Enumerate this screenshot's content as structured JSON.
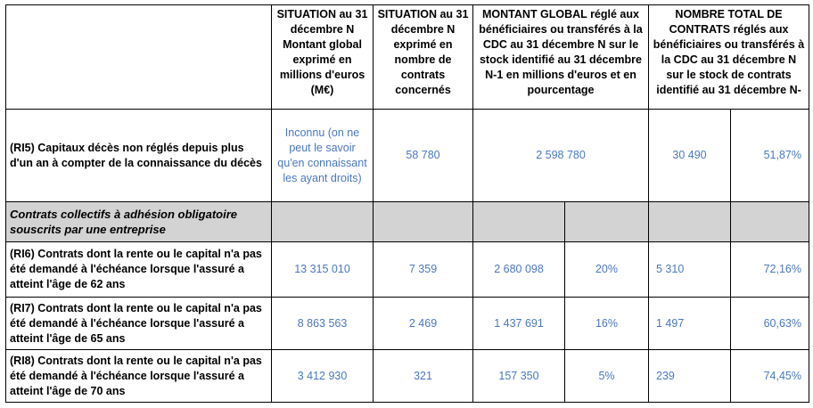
{
  "headers": {
    "col1": "SITUATION au 31 décembre N Montant global exprimé en millions d'euros (M€)",
    "col2": "SITUATION au 31 décembre N exprimé en nombre de contrats concernés",
    "col3": "MONTANT GLOBAL réglé aux bénéficiaires ou transférés à la CDC au 31 décembre N sur le stock identifié au 31 décembre N-1 en millions d'euros et en pourcentage",
    "col4": "NOMBRE TOTAL DE CONTRATS réglés aux bénéficiaires ou transférés à la CDC au 31 décembre N sur le stock de contrats identifié au 31 décembre N-"
  },
  "rows": [
    {
      "label": "(RI5) Capitaux décès non réglés depuis plus d'un an à compter de la connaissance du décès",
      "montant": "Inconnu (on ne peut le savoir qu'en connaissant les ayant droits)",
      "contrats": "58 780",
      "regle": "2 598 780",
      "nombre": "30 490",
      "nombre_pct": "51,87%"
    },
    {
      "section": "Contrats collectifs à adhésion obligatoire souscrits par une entreprise"
    },
    {
      "label": "(RI6) Contrats dont la rente ou le capital n'a pas été demandé à l'échéance lorsque l'assuré a atteint l'âge de 62 ans",
      "montant": "13 315 010",
      "contrats": "7 359",
      "regle": "2 680 098",
      "regle_pct": "20%",
      "nombre": "5 310",
      "nombre_pct": "72,16%"
    },
    {
      "label": "(RI7) Contrats dont la rente ou le capital n'a pas été demandé à l'échéance lorsque l'assuré a atteint l'âge de 65 ans",
      "montant": "8 863 563",
      "contrats": "2 469",
      "regle": "1 437 691",
      "regle_pct": "16%",
      "nombre": "1 497",
      "nombre_pct": "60,63%"
    },
    {
      "label": "(RI8) Contrats dont la rente ou le capital n'a pas été demandé à l'échéance lorsque l'assuré a atteint l'âge de 70 ans",
      "montant": "3 412 930",
      "contrats": "321",
      "regle": "157 350",
      "regle_pct": "5%",
      "nombre": "239",
      "nombre_pct": "74,45%"
    }
  ]
}
